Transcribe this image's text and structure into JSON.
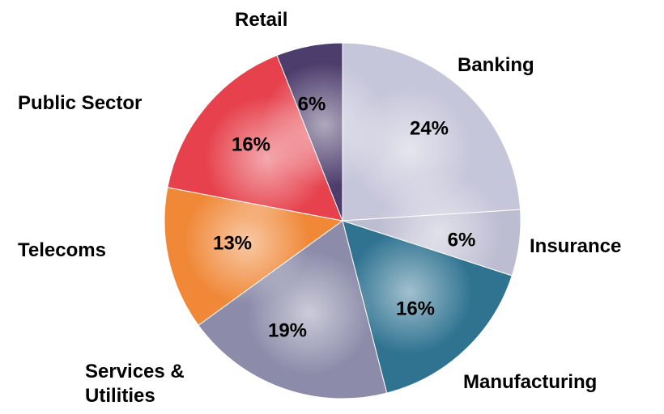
{
  "chart_data": {
    "type": "pie",
    "categories": [
      "Banking",
      "Insurance",
      "Manufacturing",
      "Services & Utilities",
      "Telecoms",
      "Public Sector",
      "Retail"
    ],
    "values": [
      24,
      6,
      16,
      19,
      13,
      16,
      6
    ],
    "value_labels": [
      "24%",
      "6%",
      "16%",
      "19%",
      "13%",
      "16%",
      "6%"
    ],
    "colors": [
      "#c6c6da",
      "#bdbdd2",
      "#2f7391",
      "#8c8caa",
      "#f08838",
      "#e6414c",
      "#4d3d6c"
    ]
  }
}
